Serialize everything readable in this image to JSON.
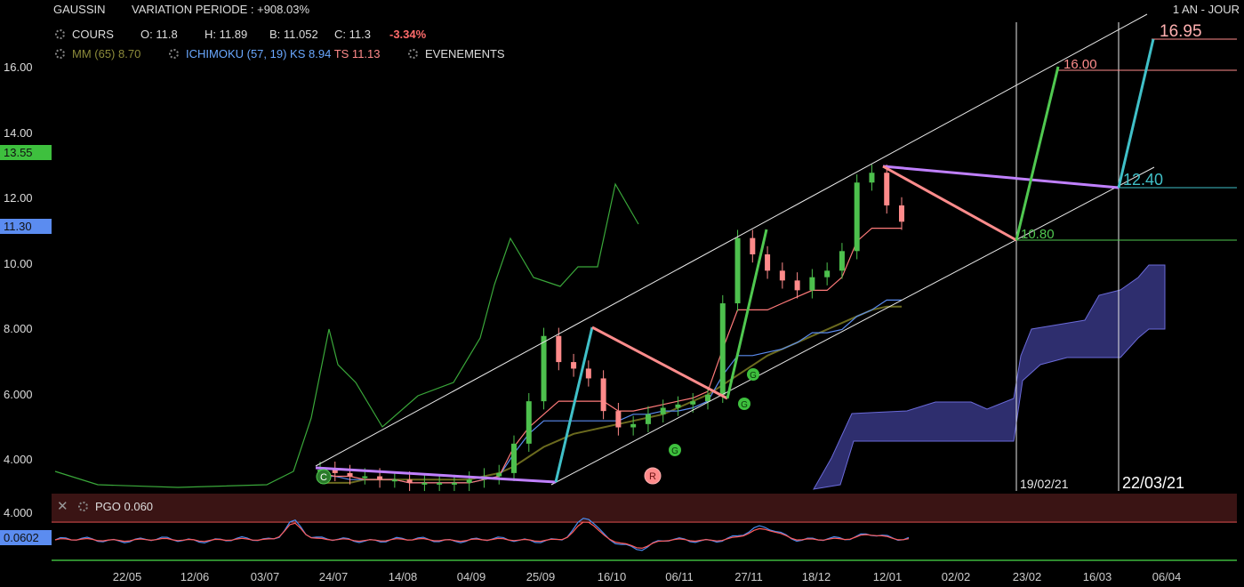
{
  "header": {
    "ticker": "GAUSSIN",
    "variation": "VARIATION PERIODE : +908.03%",
    "period": "1 AN - JOUR",
    "cours_label": "COURS",
    "open": "O: 11.8",
    "high": "H: 11.89",
    "low": "B: 11.052",
    "close": "C: 11.3",
    "change": "-3.34%",
    "mm": "MM (65) 8.70",
    "ichimoku": "ICHIMOKU (57, 19)",
    "ks": "KS 8.94",
    "ts": "TS 11.13",
    "events": "EVENEMENTS"
  },
  "badges": {
    "green_price": "13.55",
    "blue_price": "11.30",
    "pgo_value": "0.0602"
  },
  "pgo": {
    "label": "PGO 0.060",
    "level": "4.000"
  },
  "annotations": {
    "target_high": "16.95",
    "target_mid": "16.00",
    "target_blue": "12.40",
    "support": "10.80",
    "date1": "19/02/21",
    "date2": "22/03/21",
    "event_c": "C",
    "event_r": "R",
    "event_g": "G"
  },
  "colors": {
    "candle_down": "#ff8a8a",
    "candle_up": "#4dc04d",
    "cloud": "#2e2e6e",
    "trend_purple": "#c080ff",
    "trend_cyan": "#40c0c8",
    "trend_pink": "#ff8c8c",
    "trend_green": "#50c850"
  },
  "chart_data": {
    "type": "line",
    "title": "GAUSSIN",
    "y_ticks": [
      "16.00",
      "14.00",
      "12.00",
      "10.00",
      "8.000",
      "6.000",
      "4.000"
    ],
    "ylim": [
      2.9,
      17.4
    ],
    "x_ticks": [
      "22/05",
      "12/06",
      "03/07",
      "24/07",
      "14/08",
      "04/09",
      "25/09",
      "16/10",
      "06/11",
      "27/11",
      "18/12",
      "12/01",
      "02/02",
      "23/02",
      "16/03",
      "06/04"
    ],
    "price_close": [
      3.7,
      3.6,
      3.5,
      3.5,
      3.4,
      3.4,
      3.3,
      3.3,
      3.3,
      3.3,
      3.4,
      3.5,
      3.6,
      4.5,
      5.8,
      7.8,
      7.0,
      6.8,
      6.5,
      5.5,
      5.0,
      5.1,
      5.4,
      5.6,
      5.7,
      5.8,
      6.0,
      8.8,
      10.8,
      10.3,
      9.8,
      9.5,
      9.2,
      9.6,
      9.8,
      10.4,
      12.5,
      12.8,
      11.8,
      11.3
    ],
    "series": [
      {
        "name": "MM (65)",
        "values": [
          3.3,
          3.3,
          3.3,
          3.4,
          3.4,
          3.4,
          3.4,
          3.4,
          3.4,
          3.4,
          3.4,
          3.5,
          3.6,
          3.8,
          4.1,
          4.4,
          4.6,
          4.8,
          4.9,
          5.0,
          5.1,
          5.2,
          5.3,
          5.4,
          5.6,
          5.8,
          6.0,
          6.3,
          6.6,
          6.9,
          7.2,
          7.4,
          7.6,
          7.8,
          8.0,
          8.2,
          8.4,
          8.6,
          8.7,
          8.7
        ]
      },
      {
        "name": "KS",
        "values": [
          3.5,
          3.5,
          3.4,
          3.4,
          3.4,
          3.4,
          3.3,
          3.3,
          3.3,
          3.3,
          3.3,
          3.4,
          3.5,
          4.2,
          4.8,
          5.2,
          5.2,
          5.2,
          5.2,
          5.2,
          5.2,
          5.4,
          5.4,
          5.5,
          5.5,
          5.6,
          5.8,
          6.6,
          7.2,
          7.2,
          7.3,
          7.4,
          7.6,
          7.9,
          7.9,
          8.0,
          8.4,
          8.6,
          8.9,
          8.9
        ]
      },
      {
        "name": "TS",
        "values": [
          3.6,
          3.5,
          3.5,
          3.4,
          3.4,
          3.4,
          3.3,
          3.3,
          3.3,
          3.3,
          3.3,
          3.4,
          3.5,
          4.4,
          5.0,
          5.4,
          5.8,
          5.8,
          5.8,
          5.8,
          5.5,
          5.5,
          5.6,
          5.7,
          5.8,
          5.9,
          6.1,
          7.4,
          8.6,
          8.6,
          8.6,
          8.8,
          9.0,
          9.2,
          9.2,
          9.6,
          10.7,
          11.1,
          11.1,
          11.1
        ]
      }
    ]
  }
}
